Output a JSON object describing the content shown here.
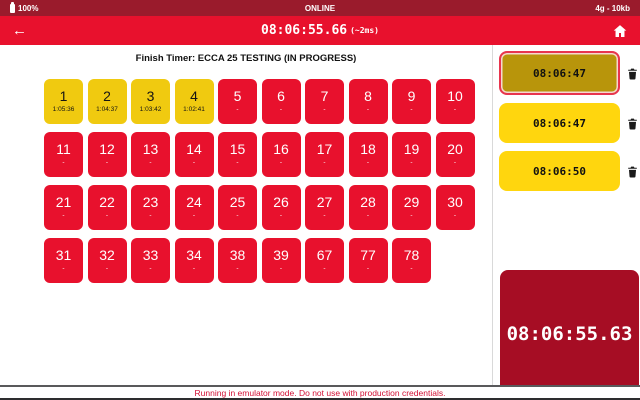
{
  "status_bar": {
    "battery": "100%",
    "status": "ONLINE",
    "network": "4g - 10kb"
  },
  "header": {
    "timer": "08:06:55.66",
    "drift": "(~2ms)",
    "back_label": "←"
  },
  "main": {
    "heading": "Finish Timer: ECCA 25 TESTING (IN PROGRESS)",
    "tiles": [
      {
        "number": "1",
        "time": "1:05:36",
        "state": "recorded"
      },
      {
        "number": "2",
        "time": "1:04:37",
        "state": "recorded"
      },
      {
        "number": "3",
        "time": "1:03:42",
        "state": "recorded"
      },
      {
        "number": "4",
        "time": "1:02:41",
        "state": "recorded"
      },
      {
        "number": "5",
        "time": "-",
        "state": "pending"
      },
      {
        "number": "6",
        "time": "-",
        "state": "pending"
      },
      {
        "number": "7",
        "time": "-",
        "state": "pending"
      },
      {
        "number": "8",
        "time": "-",
        "state": "pending"
      },
      {
        "number": "9",
        "time": "-",
        "state": "pending"
      },
      {
        "number": "10",
        "time": "-",
        "state": "pending"
      },
      {
        "number": "11",
        "time": "-",
        "state": "pending"
      },
      {
        "number": "12",
        "time": "-",
        "state": "pending"
      },
      {
        "number": "13",
        "time": "-",
        "state": "pending"
      },
      {
        "number": "14",
        "time": "-",
        "state": "pending"
      },
      {
        "number": "15",
        "time": "-",
        "state": "pending"
      },
      {
        "number": "16",
        "time": "-",
        "state": "pending"
      },
      {
        "number": "17",
        "time": "-",
        "state": "pending"
      },
      {
        "number": "18",
        "time": "-",
        "state": "pending"
      },
      {
        "number": "19",
        "time": "-",
        "state": "pending"
      },
      {
        "number": "20",
        "time": "-",
        "state": "pending"
      },
      {
        "number": "21",
        "time": "-",
        "state": "pending"
      },
      {
        "number": "22",
        "time": "-",
        "state": "pending"
      },
      {
        "number": "23",
        "time": "-",
        "state": "pending"
      },
      {
        "number": "24",
        "time": "-",
        "state": "pending"
      },
      {
        "number": "25",
        "time": "-",
        "state": "pending"
      },
      {
        "number": "26",
        "time": "-",
        "state": "pending"
      },
      {
        "number": "27",
        "time": "-",
        "state": "pending"
      },
      {
        "number": "28",
        "time": "-",
        "state": "pending"
      },
      {
        "number": "29",
        "time": "-",
        "state": "pending"
      },
      {
        "number": "30",
        "time": "-",
        "state": "pending"
      },
      {
        "number": "31",
        "time": "-",
        "state": "pending"
      },
      {
        "number": "32",
        "time": "-",
        "state": "pending"
      },
      {
        "number": "33",
        "time": "-",
        "state": "pending"
      },
      {
        "number": "34",
        "time": "-",
        "state": "pending"
      },
      {
        "number": "38",
        "time": "-",
        "state": "pending"
      },
      {
        "number": "39",
        "time": "-",
        "state": "pending"
      },
      {
        "number": "67",
        "time": "-",
        "state": "pending"
      },
      {
        "number": "77",
        "time": "-",
        "state": "pending"
      },
      {
        "number": "78",
        "time": "-",
        "state": "pending"
      }
    ]
  },
  "sidebar": {
    "entries": [
      {
        "time": "08:06:47",
        "selected": true
      },
      {
        "time": "08:06:47",
        "selected": false
      },
      {
        "time": "08:06:50",
        "selected": false
      }
    ]
  },
  "live_timer": {
    "value": "08:06:55.63"
  },
  "footer": {
    "message": "Running in emulator mode. Do not use with production credentials."
  },
  "colors": {
    "status_bar_bg": "#9a1b2c",
    "header_bg": "#e8112d",
    "tile_pending": "#e8112d",
    "tile_recorded": "#f0ca10",
    "entry_yellow": "#ffd60e",
    "entry_selected": "#b8950b",
    "entry_selected_border": "#e8354e",
    "live_timer_bg": "#a60d24",
    "footer_text": "#d21034"
  }
}
